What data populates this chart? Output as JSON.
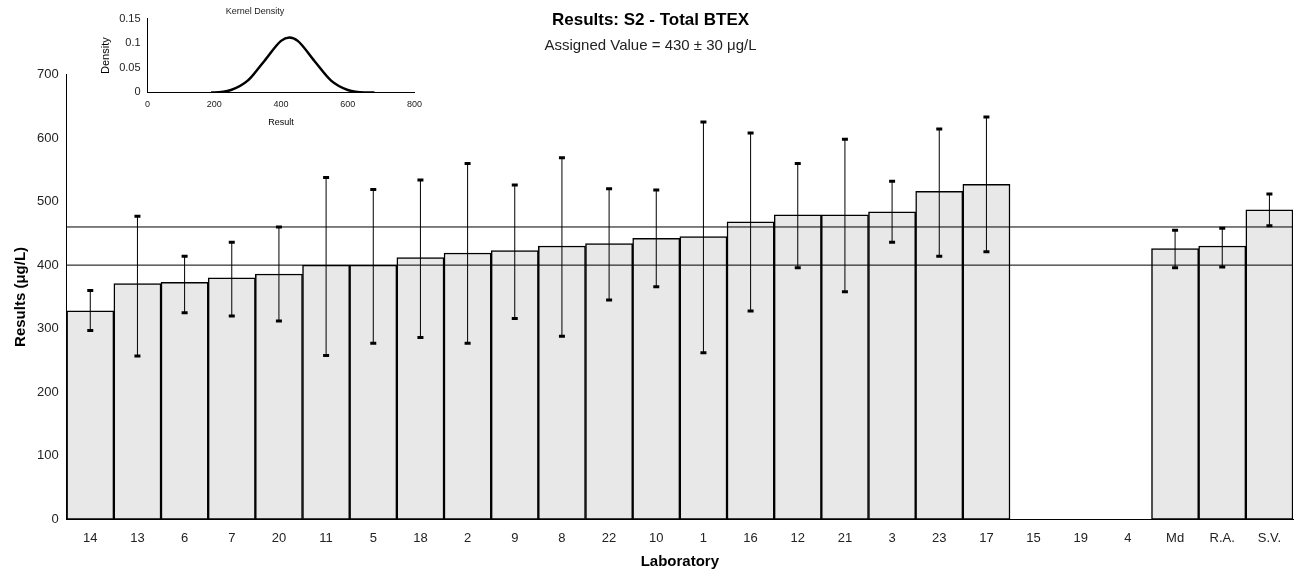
{
  "chart_data": [
    {
      "type": "line",
      "title": "Kernel Density",
      "xlabel": "Result",
      "ylabel": "Density",
      "xlim": [
        0,
        800
      ],
      "xticks": [
        0,
        200,
        400,
        600,
        800
      ],
      "ylim": [
        0,
        0.15
      ],
      "yticks": [
        0,
        {
          "value": 0.05,
          "label": "0.05"
        },
        {
          "value": 0.1,
          "label": "0.1"
        },
        {
          "value": 0.15,
          "label": "0.15"
        }
      ],
      "series": [
        {
          "color": "#000000",
          "x": [
            190,
            200,
            250,
            300,
            350,
            400,
            425,
            450,
            500,
            550,
            600,
            650,
            680
          ],
          "values": [
            0,
            0,
            0.005,
            0.024,
            0.064,
            0.105,
            0.112,
            0.105,
            0.064,
            0.024,
            0.005,
            0,
            0
          ]
        }
      ]
    },
    {
      "type": "bar",
      "title": "Results: S2 - Total BTEX",
      "subtitle": "Assigned Value = 430 ± 30 μg/L",
      "xlabel": "Laboratory",
      "ylabel": "Results (μg/L)",
      "categories": [
        "14",
        "13",
        "6",
        "7",
        "20",
        "11",
        "5",
        "18",
        "2",
        "9",
        "8",
        "22",
        "10",
        "1",
        "16",
        "12",
        "21",
        "3",
        "23",
        "17",
        "15",
        "19",
        "4",
        "Md",
        "R.A.",
        "S.V."
      ],
      "ylim": [
        0,
        700
      ],
      "yticks": [
        0,
        100,
        200,
        300,
        400,
        500,
        600,
        700
      ],
      "series": [
        {
          "color": "#e8e8e8",
          "values": [
            328,
            371,
            373,
            380,
            386,
            400,
            400,
            412,
            419,
            423,
            430,
            434,
            442,
            445,
            468,
            479,
            479,
            484,
            516,
            527,
            null,
            null,
            null,
            426,
            430,
            487
          ],
          "errors": [
            [
              297,
              360
            ],
            [
              257,
              477
            ],
            [
              325,
              414
            ],
            [
              320,
              436
            ],
            [
              312,
              460
            ],
            [
              258,
              538
            ],
            [
              277,
              519
            ],
            [
              286,
              534
            ],
            [
              277,
              560
            ],
            [
              316,
              526
            ],
            [
              288,
              569
            ],
            [
              345,
              520
            ],
            [
              366,
              518
            ],
            [
              262,
              625
            ],
            [
              328,
              608
            ],
            [
              396,
              560
            ],
            [
              358,
              598
            ],
            [
              436,
              532
            ],
            [
              414,
              614
            ],
            [
              421,
              633
            ],
            null,
            null,
            null,
            [
              396,
              455
            ],
            [
              397,
              458
            ],
            [
              462,
              512
            ]
          ]
        }
      ],
      "ref_lines": [
        {
          "axis": "y",
          "value": 400,
          "color": "#000000"
        },
        {
          "axis": "y",
          "value": 460,
          "color": "#000000"
        }
      ]
    }
  ]
}
